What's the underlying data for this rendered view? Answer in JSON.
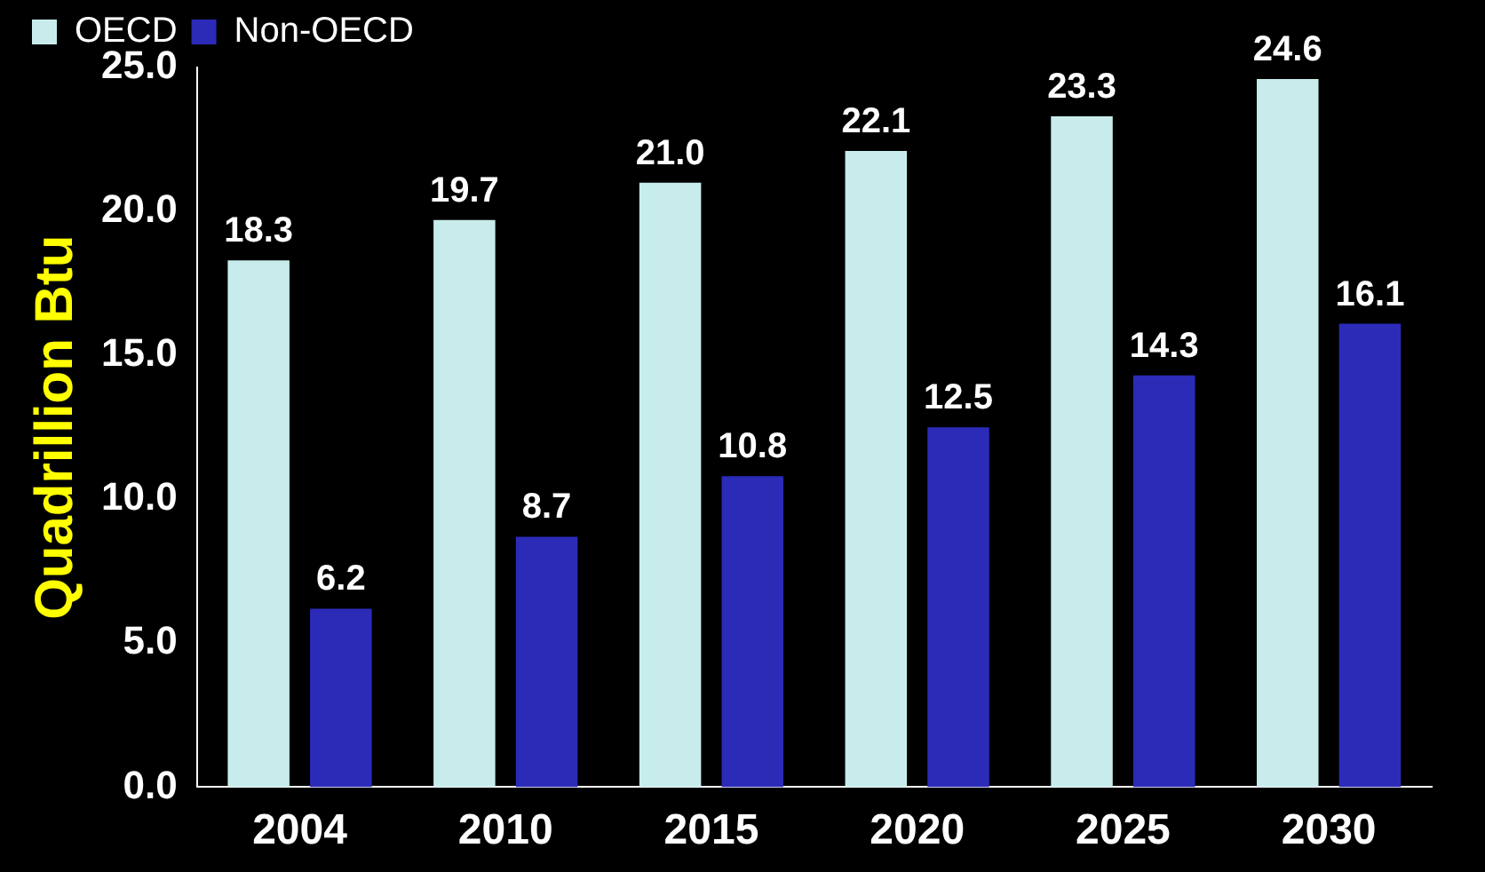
{
  "chart_data": {
    "type": "bar",
    "ylabel": "Quadrillion Btu",
    "categories": [
      "2004",
      "2010",
      "2015",
      "2020",
      "2025",
      "2030"
    ],
    "series": [
      {
        "name": "OECD",
        "color": "#c8ecec",
        "values": [
          18.3,
          19.7,
          21.0,
          22.1,
          23.3,
          24.6
        ],
        "value_labels": [
          "18.3",
          "19.7",
          "21.0",
          "22.1",
          "23.3",
          "24.6"
        ]
      },
      {
        "name": "Non-OECD",
        "color": "#2b2bb8",
        "values": [
          6.2,
          8.7,
          10.8,
          12.5,
          14.3,
          16.1
        ],
        "value_labels": [
          "6.2",
          "8.7",
          "10.8",
          "12.5",
          "14.3",
          "16.1"
        ]
      }
    ],
    "ylim": [
      0,
      25
    ],
    "yticks": [
      {
        "value": 0,
        "label": "0.0"
      },
      {
        "value": 5,
        "label": "5.0"
      },
      {
        "value": 10,
        "label": "10.0"
      },
      {
        "value": 15,
        "label": "15.0"
      },
      {
        "value": 20,
        "label": "20.0"
      },
      {
        "value": 25,
        "label": "25.0"
      }
    ],
    "grid": false,
    "legend": "top left"
  }
}
